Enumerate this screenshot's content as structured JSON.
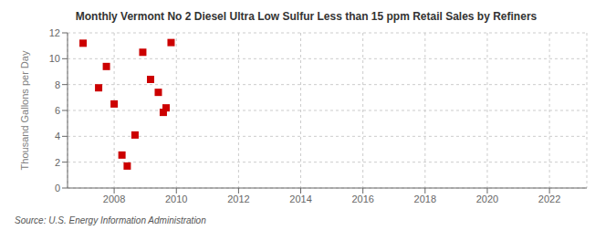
{
  "chart_data": {
    "type": "scatter",
    "title": "Monthly Vermont No 2 Diesel Ultra Low Sulfur Less than 15 ppm Retail Sales by Refiners",
    "y_label": "Thousand Gallons per Day",
    "annotation": "Source: U.S. Energy Information Administration",
    "x": [
      2007.0,
      2007.5,
      2007.75,
      2008.0,
      2008.25,
      2008.42,
      2008.67,
      2008.92,
      2009.17,
      2009.42,
      2009.58,
      2009.67,
      2009.83
    ],
    "values": [
      11.2,
      7.75,
      9.4,
      6.5,
      2.55,
      1.7,
      4.1,
      10.5,
      8.4,
      7.4,
      5.85,
      6.2,
      11.25
    ],
    "color": "#cc0000",
    "marker": "square",
    "xlim": [
      2006.5,
      2023.2
    ],
    "xticks": [
      2008,
      2010,
      2012,
      2014,
      2016,
      2018,
      2020,
      2022
    ],
    "ylim": [
      0,
      12
    ],
    "yticks": [
      0,
      2,
      4,
      6,
      8,
      10,
      12
    ],
    "grid": true
  }
}
